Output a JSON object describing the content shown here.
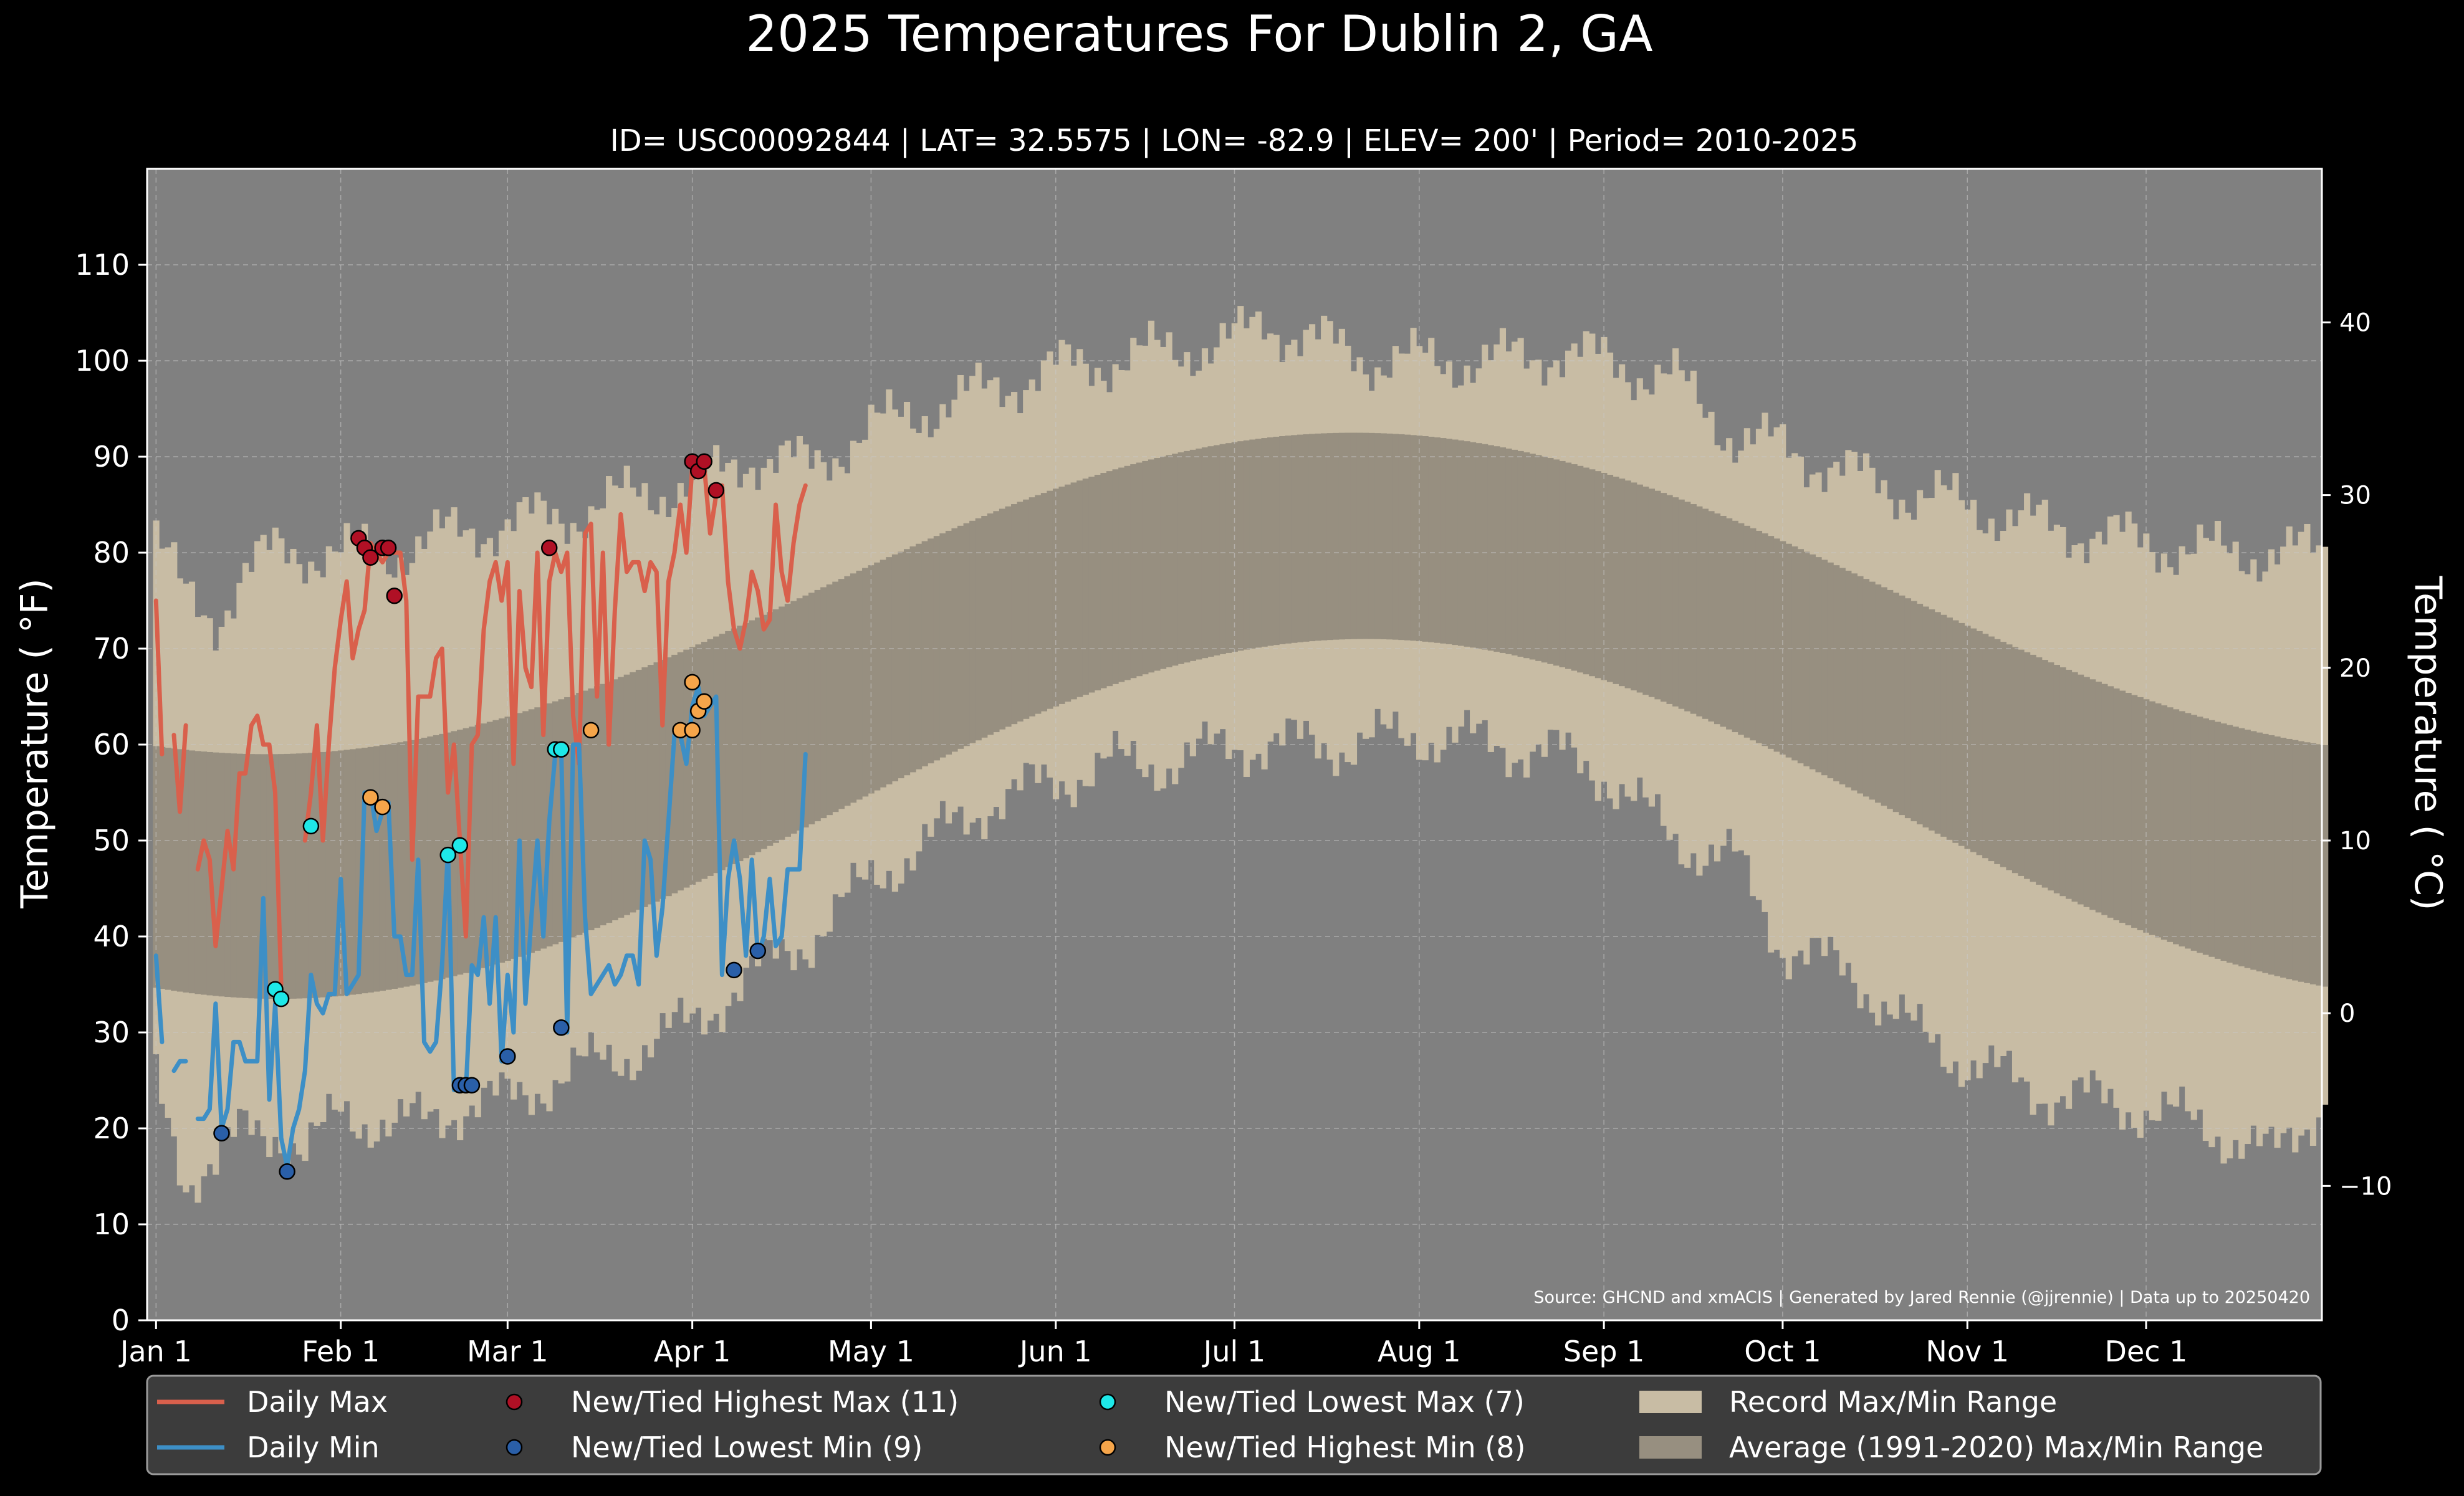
{
  "chart_data": {
    "type": "line",
    "title": "2025 Temperatures For Dublin 2, GA",
    "subtitle": "ID= USC00092844 | LAT= 32.5575 | LON= -82.9 | ELEV= 200' | Period= 2010-2025",
    "ylabel": "Temperature ( °F)",
    "ylabel_right": "Temperature ( °C)",
    "ylim": [
      0,
      120
    ],
    "ylim_c": [
      -17.78,
      48.89
    ],
    "xlim": [
      -1.5,
      363.5
    ],
    "yticks": [
      0,
      10,
      20,
      30,
      40,
      50,
      60,
      70,
      80,
      90,
      100,
      110
    ],
    "yticks_c": [
      -10,
      0,
      10,
      20,
      30,
      40
    ],
    "yticks_c_labels": [
      "−10",
      "0",
      "10",
      "20",
      "30",
      "40"
    ],
    "x_tick_days": [
      0,
      31,
      59,
      90,
      120,
      151,
      181,
      212,
      243,
      273,
      304,
      334
    ],
    "x_tick_labels": [
      "Jan 1",
      "Feb 1",
      "Mar 1",
      "Apr 1",
      "May 1",
      "Jun 1",
      "Jul 1",
      "Aug 1",
      "Sep 1",
      "Oct 1",
      "Nov 1",
      "Dec 1"
    ],
    "grid": true,
    "source_note": "Source: GHCND and xmACIS | Generated by Jared Rennie (@jjrennie) | Data up to 20250420",
    "record_range": {
      "max_anchors": [
        [
          0,
          82
        ],
        [
          5,
          75
        ],
        [
          10,
          73
        ],
        [
          15,
          78
        ],
        [
          20,
          80
        ],
        [
          25,
          80
        ],
        [
          31,
          80
        ],
        [
          40,
          80
        ],
        [
          50,
          82
        ],
        [
          59,
          83
        ],
        [
          70,
          84
        ],
        [
          80,
          86
        ],
        [
          90,
          87
        ],
        [
          100,
          90
        ],
        [
          110,
          89
        ],
        [
          120,
          93
        ],
        [
          130,
          95
        ],
        [
          140,
          97
        ],
        [
          150,
          99
        ],
        [
          160,
          100
        ],
        [
          170,
          101
        ],
        [
          181,
          102
        ],
        [
          186,
          104
        ],
        [
          195,
          102
        ],
        [
          205,
          100
        ],
        [
          212,
          100
        ],
        [
          225,
          100
        ],
        [
          235,
          101
        ],
        [
          243,
          100
        ],
        [
          255,
          98
        ],
        [
          265,
          92
        ],
        [
          273,
          91
        ],
        [
          285,
          88
        ],
        [
          295,
          86
        ],
        [
          304,
          85
        ],
        [
          315,
          83
        ],
        [
          325,
          82
        ],
        [
          334,
          81
        ],
        [
          345,
          80
        ],
        [
          355,
          80
        ],
        [
          364,
          80
        ]
      ],
      "min_anchors": [
        [
          0,
          25
        ],
        [
          5,
          15
        ],
        [
          10,
          16
        ],
        [
          15,
          20
        ],
        [
          20,
          20
        ],
        [
          25,
          17
        ],
        [
          31,
          22
        ],
        [
          40,
          20
        ],
        [
          50,
          22
        ],
        [
          59,
          23
        ],
        [
          70,
          26
        ],
        [
          80,
          28
        ],
        [
          90,
          31
        ],
        [
          100,
          36
        ],
        [
          110,
          40
        ],
        [
          120,
          46
        ],
        [
          130,
          50
        ],
        [
          140,
          54
        ],
        [
          150,
          56
        ],
        [
          160,
          58
        ],
        [
          170,
          58
        ],
        [
          181,
          60
        ],
        [
          190,
          60
        ],
        [
          200,
          60
        ],
        [
          212,
          61
        ],
        [
          225,
          60
        ],
        [
          235,
          59
        ],
        [
          243,
          57
        ],
        [
          255,
          50
        ],
        [
          265,
          48
        ],
        [
          273,
          39
        ],
        [
          285,
          36
        ],
        [
          295,
          30
        ],
        [
          304,
          27
        ],
        [
          315,
          24
        ],
        [
          325,
          23
        ],
        [
          334,
          22
        ],
        [
          345,
          20
        ],
        [
          355,
          17
        ],
        [
          364,
          23
        ]
      ]
    },
    "average_range": {
      "max_peak": 92.5,
      "max_trough": 59,
      "max_peak_day": 201,
      "min_peak": 71,
      "min_trough": 33.5,
      "min_peak_day": 203
    },
    "series": [
      {
        "name": "Daily Max",
        "color": "#d9604c",
        "x": [
          0,
          1,
          2,
          3,
          4,
          5,
          6,
          7,
          8,
          9,
          10,
          11,
          12,
          13,
          14,
          15,
          16,
          17,
          18,
          19,
          20,
          21,
          22,
          23,
          24,
          25,
          26,
          27,
          28,
          29,
          30,
          31,
          32,
          33,
          34,
          35,
          36,
          37,
          38,
          39,
          40,
          41,
          42,
          43,
          44,
          45,
          46,
          47,
          48,
          49,
          50,
          51,
          52,
          53,
          54,
          55,
          56,
          57,
          58,
          59,
          60,
          61,
          62,
          63,
          64,
          65,
          66,
          67,
          68,
          69,
          70,
          71,
          72,
          73,
          74,
          75,
          76,
          77,
          78,
          79,
          80,
          81,
          82,
          83,
          84,
          85,
          86,
          87,
          88,
          89,
          90,
          91,
          92,
          93,
          94,
          95,
          96,
          97,
          98,
          99,
          100,
          101,
          102,
          103,
          104,
          105,
          106,
          107,
          108,
          109
        ],
        "values": [
          75,
          59,
          null,
          61,
          53,
          62,
          null,
          47,
          50,
          48,
          39,
          45,
          51,
          47,
          57,
          57,
          62,
          63,
          60,
          60,
          55,
          35,
          null,
          null,
          null,
          50,
          55,
          62,
          50,
          60,
          68,
          73,
          77,
          69,
          72,
          74,
          81,
          80,
          79,
          80,
          80,
          80,
          75,
          48,
          65,
          65,
          65,
          69,
          70,
          55,
          60,
          50,
          40,
          60,
          61,
          72,
          77,
          79,
          75,
          79,
          58,
          76,
          68,
          66,
          80,
          61,
          77,
          80,
          78,
          80,
          63,
          58,
          82,
          83,
          65,
          80,
          60,
          74,
          84,
          78,
          79,
          79,
          76,
          79,
          78,
          62,
          77,
          80,
          85,
          80,
          89,
          88,
          89,
          82,
          86,
          87,
          77,
          72,
          70,
          73,
          78,
          76,
          72,
          73,
          85,
          78,
          75,
          81,
          85,
          87
        ]
      },
      {
        "name": "Daily Min",
        "color": "#3d8fc6",
        "x": [
          0,
          1,
          2,
          3,
          4,
          5,
          6,
          7,
          8,
          9,
          10,
          11,
          12,
          13,
          14,
          15,
          16,
          17,
          18,
          19,
          20,
          21,
          22,
          23,
          24,
          25,
          26,
          27,
          28,
          29,
          30,
          31,
          32,
          33,
          34,
          35,
          36,
          37,
          38,
          39,
          40,
          41,
          42,
          43,
          44,
          45,
          46,
          47,
          48,
          49,
          50,
          51,
          52,
          53,
          54,
          55,
          56,
          57,
          58,
          59,
          60,
          61,
          62,
          63,
          64,
          65,
          66,
          67,
          68,
          69,
          70,
          71,
          72,
          73,
          74,
          75,
          76,
          77,
          78,
          79,
          80,
          81,
          82,
          83,
          84,
          85,
          86,
          87,
          88,
          89,
          90,
          91,
          92,
          93,
          94,
          95,
          96,
          97,
          98,
          99,
          100,
          101,
          102,
          103,
          104,
          105,
          106,
          107,
          108,
          109
        ],
        "values": [
          38,
          29,
          null,
          26,
          27,
          27,
          null,
          21,
          21,
          22,
          33,
          20,
          22,
          29,
          29,
          27,
          27,
          27,
          44,
          23,
          33,
          19,
          16,
          20,
          22,
          26,
          36,
          33,
          32,
          34,
          34,
          46,
          34,
          35,
          36,
          55,
          55,
          51,
          53,
          54,
          40,
          40,
          36,
          36,
          48,
          29,
          28,
          29,
          37,
          49,
          24,
          24,
          24,
          37,
          36,
          42,
          33,
          42,
          27,
          36,
          30,
          50,
          33,
          42,
          50,
          40,
          52,
          59,
          60,
          30,
          60,
          60,
          42,
          34,
          35,
          36,
          37,
          35,
          36,
          38,
          38,
          35,
          50,
          48,
          38,
          43,
          52,
          61,
          61,
          58,
          64,
          66,
          63,
          64,
          65,
          36,
          46,
          50,
          46,
          38,
          48,
          38,
          40,
          46,
          39,
          40,
          47,
          47,
          47,
          59
        ]
      }
    ],
    "markers": [
      {
        "name": "New/Tied Highest Max (11)",
        "color": "#b01025",
        "points": [
          [
            34,
            81.5
          ],
          [
            35,
            80.5
          ],
          [
            36,
            79.5
          ],
          [
            38,
            80.5
          ],
          [
            39,
            80.5
          ],
          [
            40,
            75.5
          ],
          [
            66,
            80.5
          ],
          [
            90,
            89.5
          ],
          [
            91,
            88.5
          ],
          [
            92,
            89.5
          ],
          [
            94,
            86.5
          ]
        ]
      },
      {
        "name": "New/Tied Lowest Min (9)",
        "color": "#2a5fa8",
        "points": [
          [
            11,
            19.5
          ],
          [
            22,
            15.5
          ],
          [
            51,
            24.5
          ],
          [
            52,
            24.5
          ],
          [
            53,
            24.5
          ],
          [
            59,
            27.5
          ],
          [
            68,
            30.5
          ],
          [
            97,
            36.5
          ],
          [
            101,
            38.5
          ]
        ]
      },
      {
        "name": "New/Tied Lowest Max (7)",
        "color": "#1ee8e8",
        "points": [
          [
            20,
            34.5
          ],
          [
            21,
            33.5
          ],
          [
            26,
            51.5
          ],
          [
            49,
            48.5
          ],
          [
            51,
            49.5
          ],
          [
            67,
            59.5
          ],
          [
            68,
            59.5
          ]
        ]
      },
      {
        "name": "New/Tied Highest Min (8)",
        "color": "#f5a54a",
        "points": [
          [
            36,
            54.5
          ],
          [
            38,
            53.5
          ],
          [
            73,
            61.5
          ],
          [
            88,
            61.5
          ],
          [
            90,
            61.5
          ],
          [
            91,
            63.5
          ],
          [
            90,
            66.5
          ],
          [
            92,
            64.5
          ]
        ]
      }
    ],
    "legend": [
      {
        "label": "Daily Max",
        "kind": "line",
        "color": "#d9604c"
      },
      {
        "label": "Daily Min",
        "kind": "line",
        "color": "#3d8fc6"
      },
      {
        "label": "New/Tied Highest Max (11)",
        "kind": "dot",
        "color": "#b01025"
      },
      {
        "label": "New/Tied Lowest Min (9)",
        "kind": "dot",
        "color": "#2a5fa8"
      },
      {
        "label": "New/Tied Lowest Max (7)",
        "kind": "dot",
        "color": "#1ee8e8"
      },
      {
        "label": "New/Tied Highest Min (8)",
        "kind": "dot",
        "color": "#f5a54a"
      },
      {
        "label": "Record Max/Min Range",
        "kind": "patch",
        "color": "#c8bca4"
      },
      {
        "label": "Average (1991-2020) Max/Min Range",
        "kind": "patch",
        "color": "#978f80"
      }
    ],
    "legend_placement": "bottom",
    "colors": {
      "background": "#000000",
      "plot_bg": "#808080",
      "record_band": "#c8bca4",
      "average_band": "#978f80",
      "text": "#ffffff"
    }
  }
}
